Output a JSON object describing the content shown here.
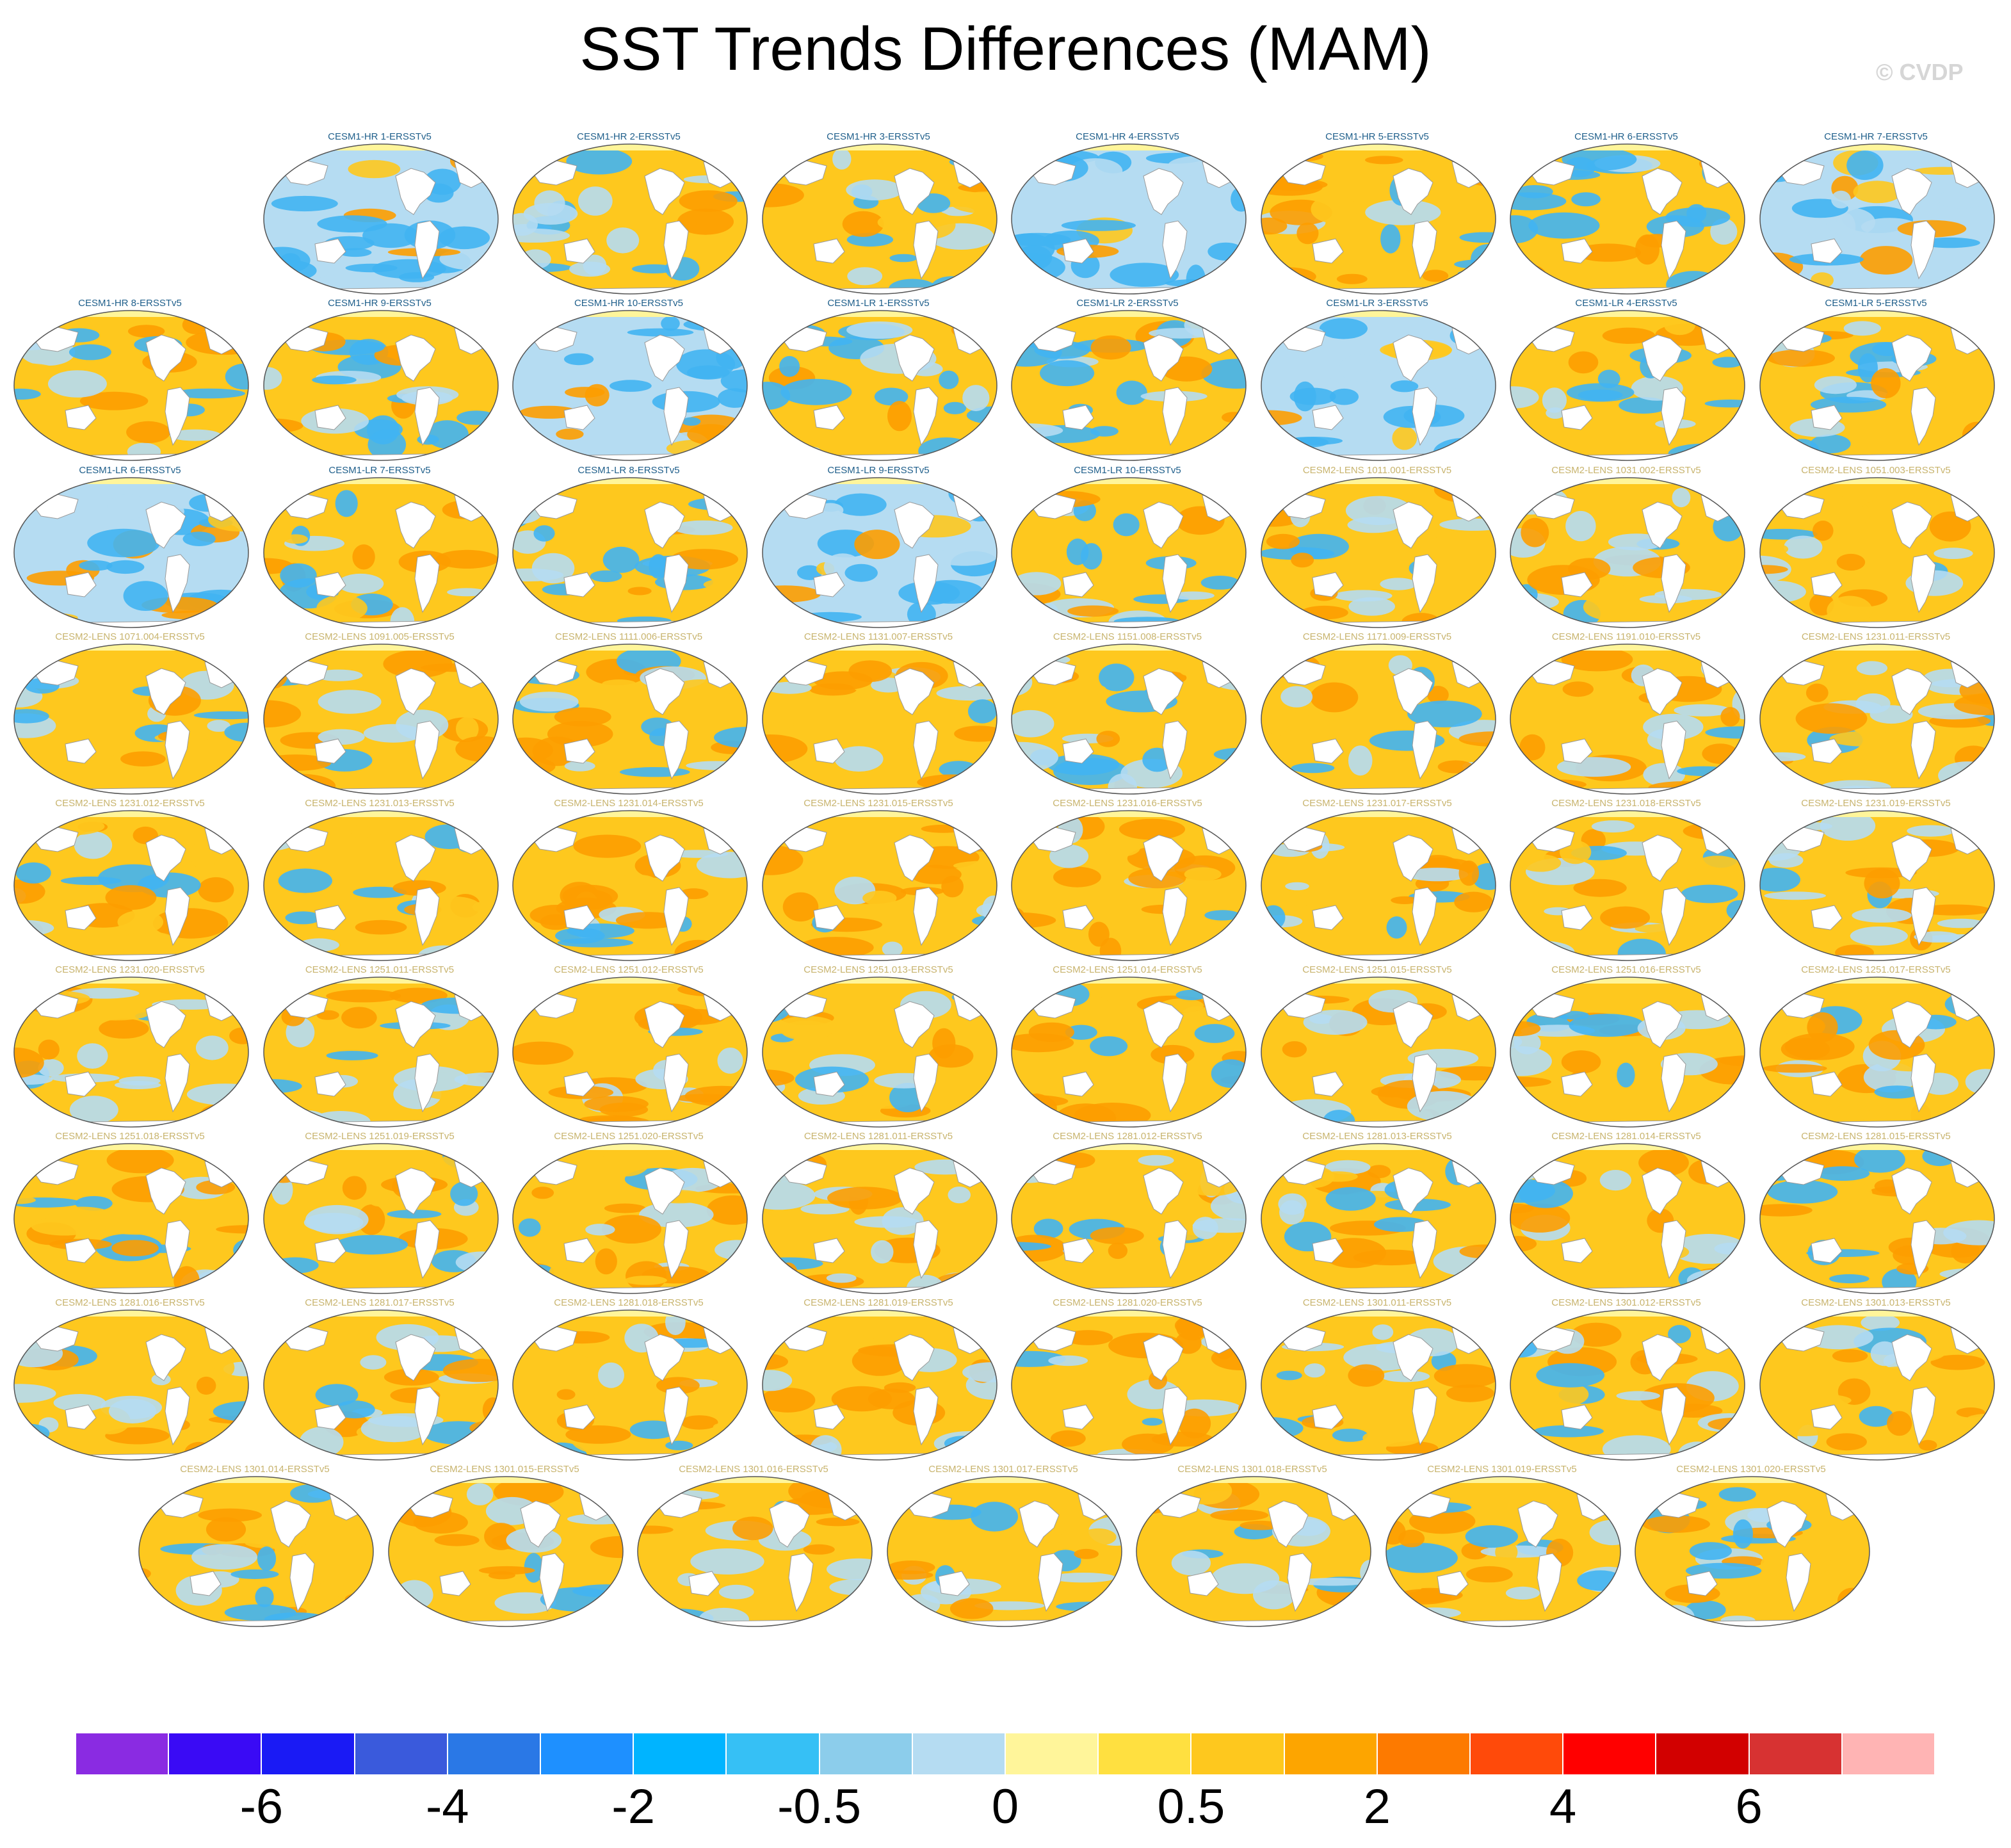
{
  "title": "SST Trends Differences (MAM)",
  "watermark": "© CVDP",
  "label_colors": {
    "CESM1": "#1f5f8b",
    "CESM2": "#c8b46e"
  },
  "map_colors": {
    "ocean_warm": "#fec81e",
    "ocean_cool": "#b5dcf2",
    "blob_orange": "#fd9d00",
    "blob_blue": "#41b4f2",
    "arctic": "#fff59a",
    "land": "#ffffff",
    "coast": "#9a9a9a"
  },
  "panels": [
    [
      "CESM1-HR 1-ERSSTv5",
      "CESM1-HR 2-ERSSTv5",
      "CESM1-HR 3-ERSSTv5",
      "CESM1-HR 4-ERSSTv5",
      "CESM1-HR 5-ERSSTv5",
      "CESM1-HR 6-ERSSTv5",
      "CESM1-HR 7-ERSSTv5"
    ],
    [
      "CESM1-HR 8-ERSSTv5",
      "CESM1-HR 9-ERSSTv5",
      "CESM1-HR 10-ERSSTv5",
      "CESM1-LR 1-ERSSTv5",
      "CESM1-LR 2-ERSSTv5",
      "CESM1-LR 3-ERSSTv5",
      "CESM1-LR 4-ERSSTv5",
      "CESM1-LR 5-ERSSTv5"
    ],
    [
      "CESM1-LR 6-ERSSTv5",
      "CESM1-LR 7-ERSSTv5",
      "CESM1-LR 8-ERSSTv5",
      "CESM1-LR 9-ERSSTv5",
      "CESM1-LR 10-ERSSTv5",
      "CESM2-LENS 1011.001-ERSSTv5",
      "CESM2-LENS 1031.002-ERSSTv5",
      "CESM2-LENS 1051.003-ERSSTv5"
    ],
    [
      "CESM2-LENS 1071.004-ERSSTv5",
      "CESM2-LENS 1091.005-ERSSTv5",
      "CESM2-LENS 1111.006-ERSSTv5",
      "CESM2-LENS 1131.007-ERSSTv5",
      "CESM2-LENS 1151.008-ERSSTv5",
      "CESM2-LENS 1171.009-ERSSTv5",
      "CESM2-LENS 1191.010-ERSSTv5",
      "CESM2-LENS 1231.011-ERSSTv5"
    ],
    [
      "CESM2-LENS 1231.012-ERSSTv5",
      "CESM2-LENS 1231.013-ERSSTv5",
      "CESM2-LENS 1231.014-ERSSTv5",
      "CESM2-LENS 1231.015-ERSSTv5",
      "CESM2-LENS 1231.016-ERSSTv5",
      "CESM2-LENS 1231.017-ERSSTv5",
      "CESM2-LENS 1231.018-ERSSTv5",
      "CESM2-LENS 1231.019-ERSSTv5"
    ],
    [
      "CESM2-LENS 1231.020-ERSSTv5",
      "CESM2-LENS 1251.011-ERSSTv5",
      "CESM2-LENS 1251.012-ERSSTv5",
      "CESM2-LENS 1251.013-ERSSTv5",
      "CESM2-LENS 1251.014-ERSSTv5",
      "CESM2-LENS 1251.015-ERSSTv5",
      "CESM2-LENS 1251.016-ERSSTv5",
      "CESM2-LENS 1251.017-ERSSTv5"
    ],
    [
      "CESM2-LENS 1251.018-ERSSTv5",
      "CESM2-LENS 1251.019-ERSSTv5",
      "CESM2-LENS 1251.020-ERSSTv5",
      "CESM2-LENS 1281.011-ERSSTv5",
      "CESM2-LENS 1281.012-ERSSTv5",
      "CESM2-LENS 1281.013-ERSSTv5",
      "CESM2-LENS 1281.014-ERSSTv5",
      "CESM2-LENS 1281.015-ERSSTv5"
    ],
    [
      "CESM2-LENS 1281.016-ERSSTv5",
      "CESM2-LENS 1281.017-ERSSTv5",
      "CESM2-LENS 1281.018-ERSSTv5",
      "CESM2-LENS 1281.019-ERSSTv5",
      "CESM2-LENS 1281.020-ERSSTv5",
      "CESM2-LENS 1301.011-ERSSTv5",
      "CESM2-LENS 1301.012-ERSSTv5",
      "CESM2-LENS 1301.013-ERSSTv5"
    ],
    [
      "CESM2-LENS 1301.014-ERSSTv5",
      "CESM2-LENS 1301.015-ERSSTv5",
      "CESM2-LENS 1301.016-ERSSTv5",
      "CESM2-LENS 1301.017-ERSSTv5",
      "CESM2-LENS 1301.018-ERSSTv5",
      "CESM2-LENS 1301.019-ERSSTv5",
      "CESM2-LENS 1301.020-ERSSTv5"
    ]
  ],
  "colorbar": {
    "colors": [
      "#8a2be2",
      "#3a0af5",
      "#1a1af5",
      "#3a5adc",
      "#2a78e6",
      "#1e90ff",
      "#00b4ff",
      "#36c0f5",
      "#8ccdeb",
      "#b5dcf2",
      "#fff59a",
      "#ffe040",
      "#fec81e",
      "#fda500",
      "#fd7a00",
      "#ff4a0a",
      "#ff0000",
      "#d20000",
      "#d73232",
      "#ffb4b4"
    ],
    "labels": [
      "-6",
      "-4",
      "-2",
      "-0.5",
      "0",
      "0.5",
      "2",
      "4",
      "6"
    ]
  }
}
